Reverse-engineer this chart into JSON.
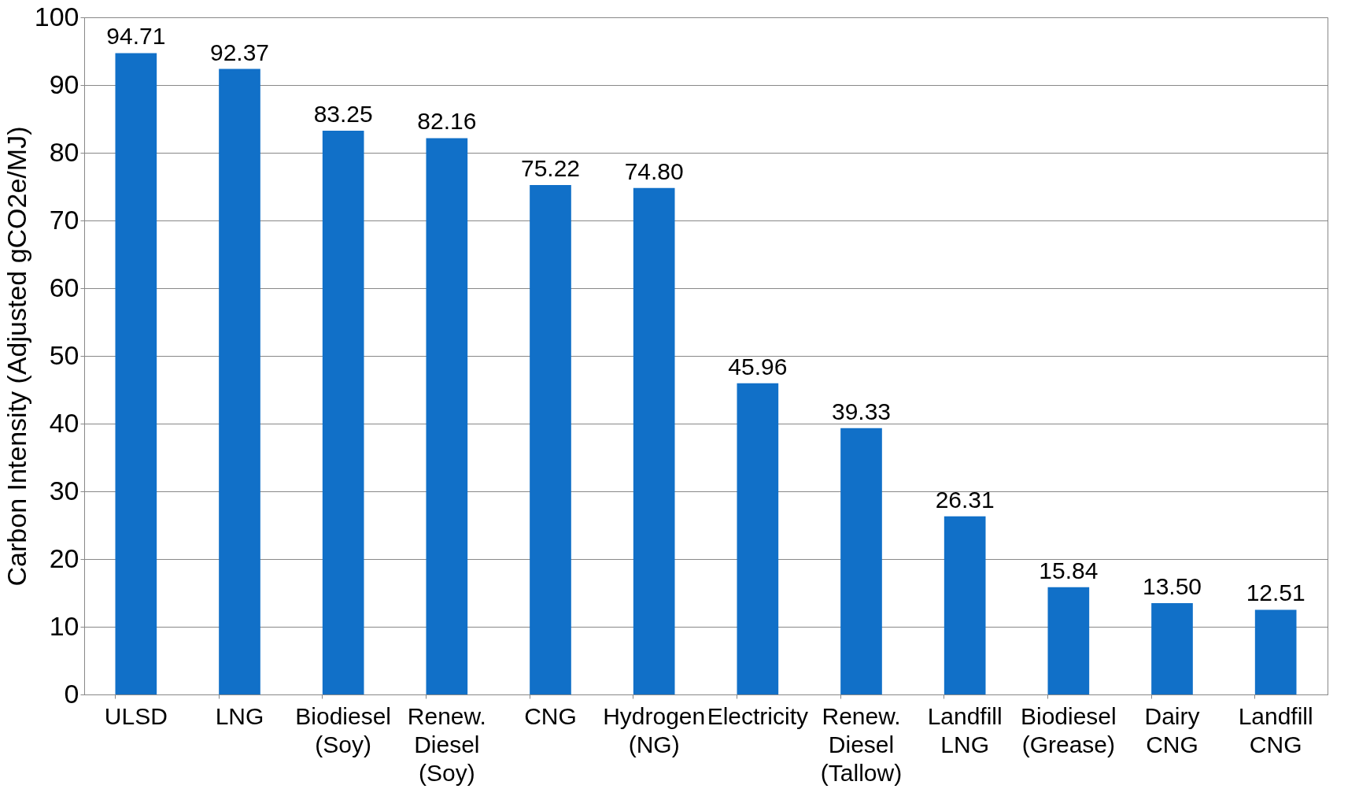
{
  "chart_data": {
    "type": "bar",
    "ylabel": "Carbon Intensity (Adjusted gCO2e/MJ)",
    "categories": [
      "ULSD",
      "LNG",
      "Biodiesel (Soy)",
      "Renew. Diesel (Soy)",
      "CNG",
      "Hydrogen (NG)",
      "Electricity",
      "Renew. Diesel (Tallow)",
      "Landfill LNG",
      "Biodiesel (Grease)",
      "Dairy CNG",
      "Landfill CNG"
    ],
    "values": [
      94.71,
      92.37,
      83.25,
      82.16,
      75.22,
      74.8,
      45.96,
      39.33,
      26.31,
      15.84,
      13.5,
      12.51
    ],
    "value_labels": [
      "94.71",
      "92.37",
      "83.25",
      "82.16",
      "75.22",
      "74.80",
      "45.96",
      "39.33",
      "26.31",
      "15.84",
      "13.50",
      "12.51"
    ],
    "color": "#1170c8",
    "ylim": [
      0,
      100
    ],
    "yticks": [
      0,
      10,
      20,
      30,
      40,
      50,
      60,
      70,
      80,
      90,
      100
    ],
    "grid": "y"
  }
}
